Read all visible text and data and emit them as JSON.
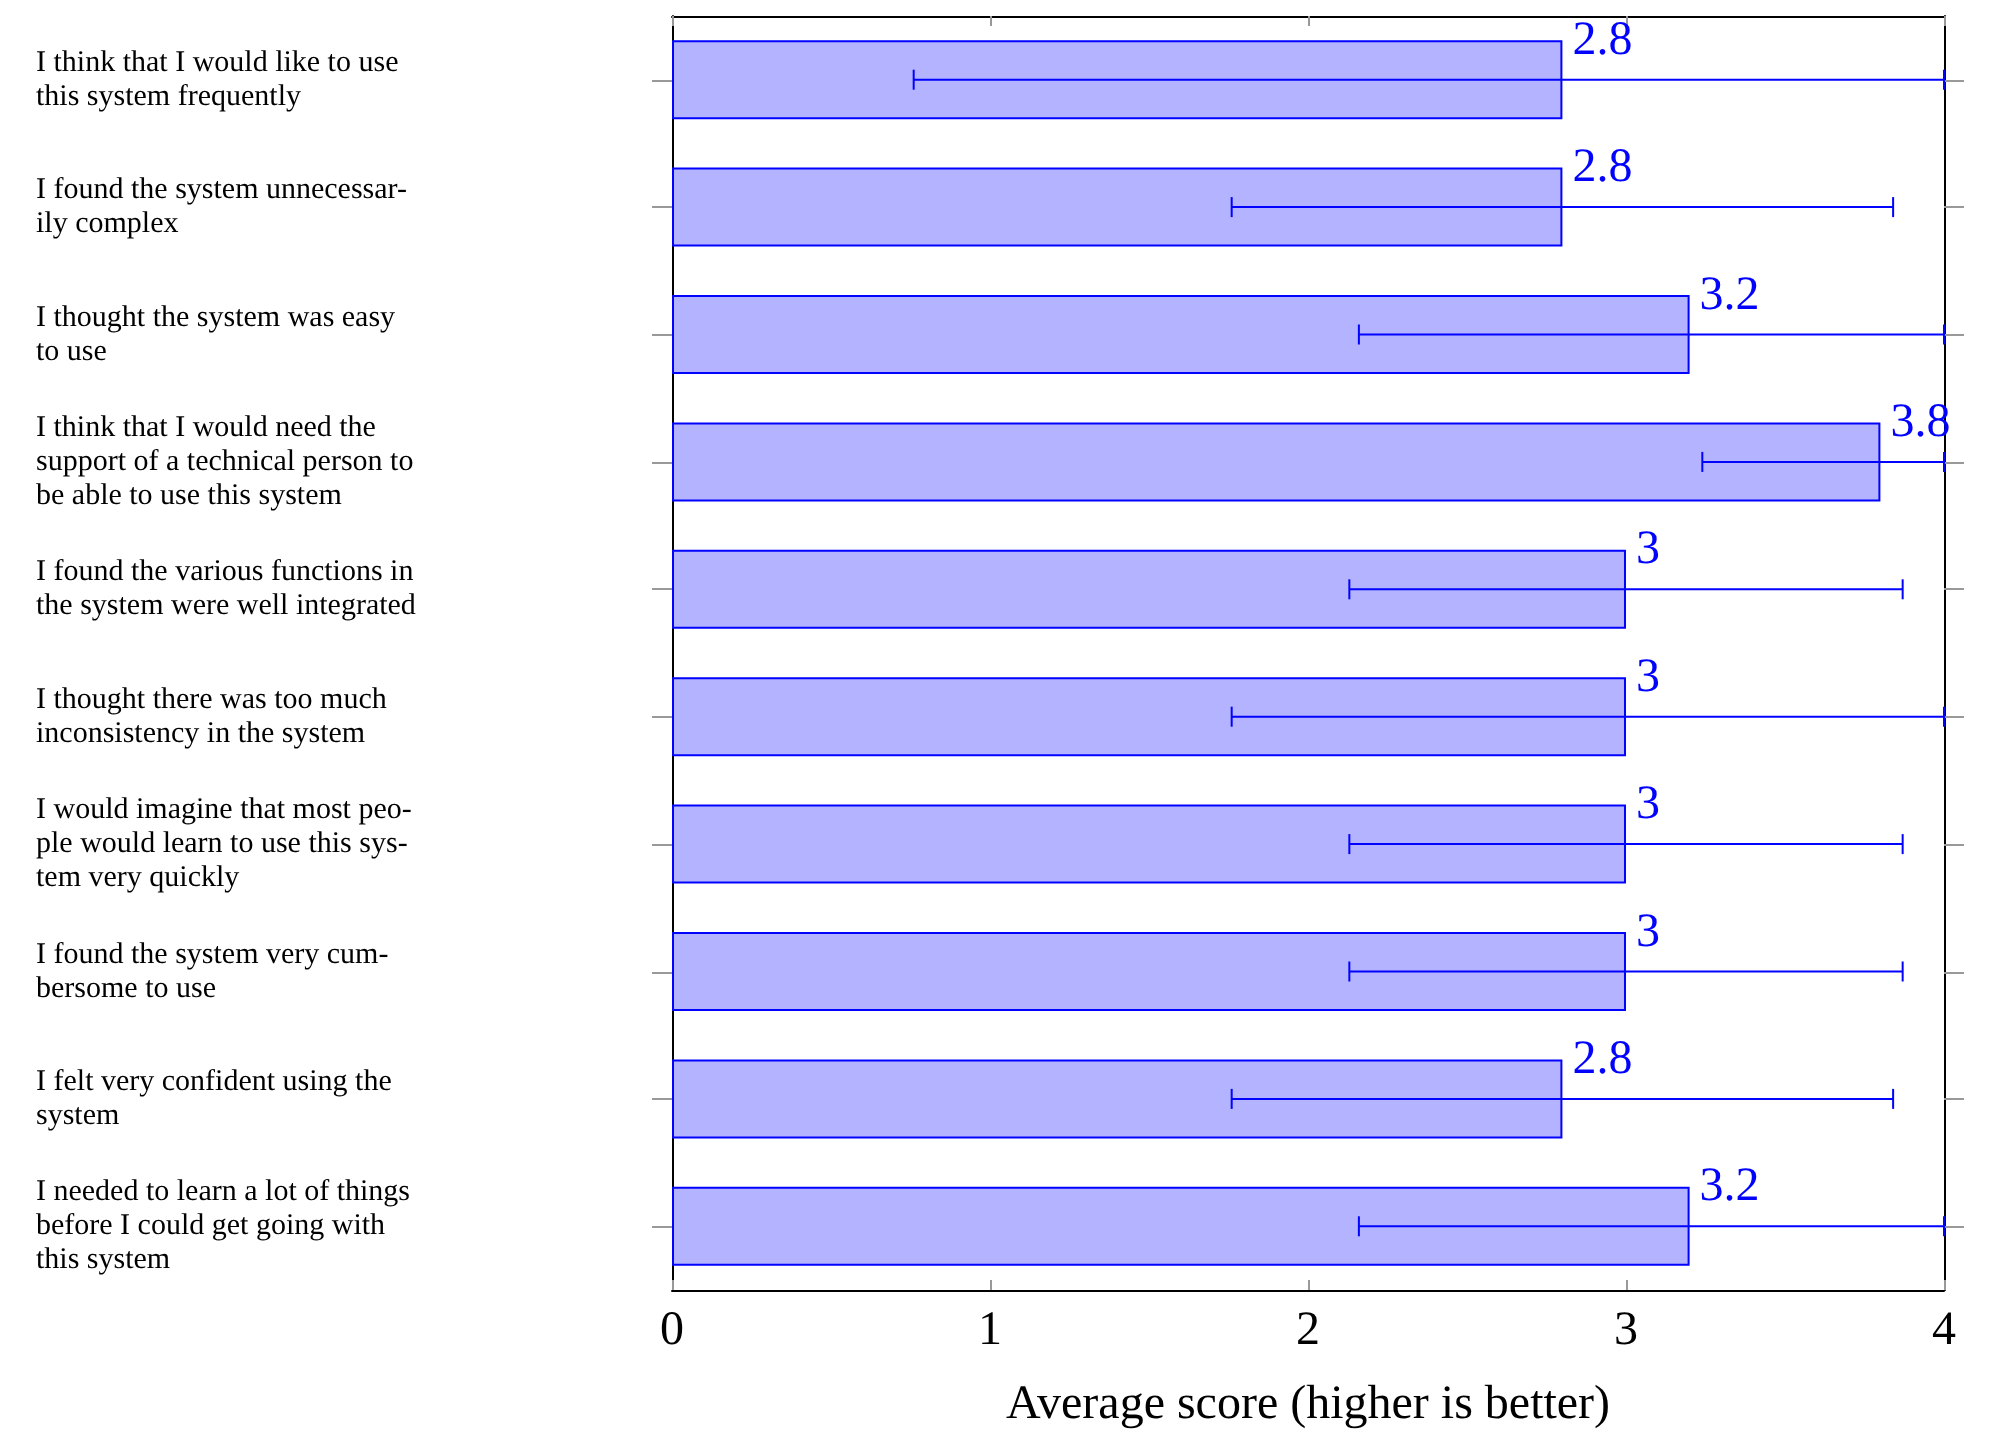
{
  "chart_data": {
    "type": "bar",
    "orientation": "horizontal",
    "xlabel": "Average score (higher is better)",
    "categories": [
      "I think that I would like to use\nthis system frequently",
      "I found the system unnecessar-\nily complex",
      "I thought the system was easy\nto use",
      "I think that I would need the\nsupport of a technical person to\nbe able to use this system",
      "I found the various functions in\nthe system were well integrated",
      "I thought there was too much\ninconsistency in the system",
      "I would imagine that most peo-\nple would learn to use this sys-\ntem very quickly",
      "I found the system very cum-\nbersome to use",
      "I felt very confident using the\nsystem",
      "I needed to learn a lot of things\nbefore I could get going with\nthis system"
    ],
    "values": [
      2.8,
      2.8,
      3.2,
      3.8,
      3,
      3,
      3,
      3,
      2.8,
      3.2
    ],
    "errors": [
      [
        0.76,
        4
      ],
      [
        1.76,
        3.84
      ],
      [
        2.16,
        4
      ],
      [
        3.24,
        4
      ],
      [
        2.13,
        3.87
      ],
      [
        1.76,
        4
      ],
      [
        2.13,
        3.87
      ],
      [
        2.13,
        3.87
      ],
      [
        1.76,
        3.84
      ],
      [
        2.16,
        4
      ]
    ],
    "color": "#b3b3ff",
    "data_labels": true,
    "xlim": [
      0,
      4
    ],
    "xticks": [
      0,
      1,
      2,
      3,
      4
    ]
  }
}
